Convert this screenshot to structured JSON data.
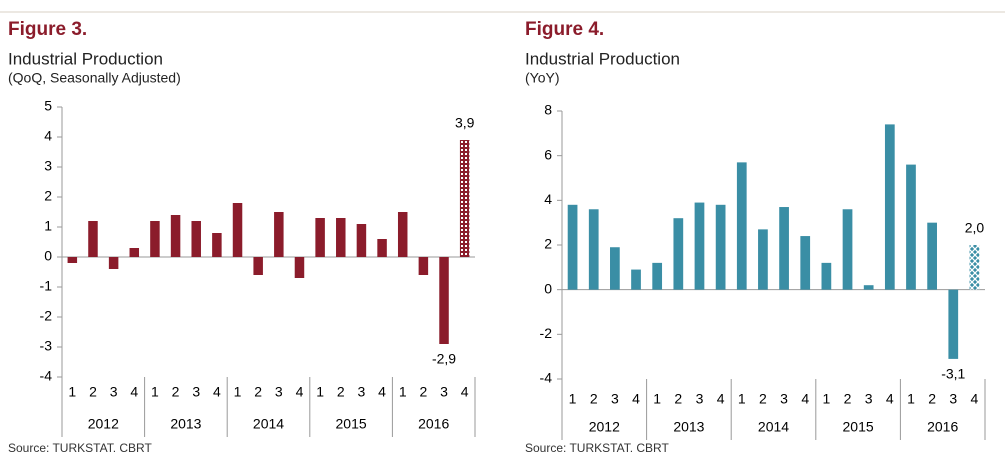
{
  "chart_data": [
    {
      "type": "bar",
      "title": "Figure 3.",
      "subtitle": "Industrial Production",
      "note": "(QoQ, Seasonally Adjusted)",
      "categories": [
        "1",
        "2",
        "3",
        "4",
        "1",
        "2",
        "3",
        "4",
        "1",
        "2",
        "3",
        "4",
        "1",
        "2",
        "3",
        "4",
        "1",
        "2",
        "3",
        "4"
      ],
      "groups": [
        "2012",
        "2013",
        "2014",
        "2015",
        "2016"
      ],
      "values": [
        -0.2,
        1.2,
        -0.4,
        0.3,
        1.2,
        1.4,
        1.2,
        0.8,
        1.8,
        -0.6,
        1.5,
        -0.7,
        1.3,
        1.3,
        1.1,
        0.6,
        1.5,
        -0.6,
        -2.9,
        3.9
      ],
      "value_labels": [
        null,
        null,
        null,
        null,
        null,
        null,
        null,
        null,
        null,
        null,
        null,
        null,
        null,
        null,
        null,
        null,
        null,
        null,
        "-2,9",
        "3,9"
      ],
      "color": "#8b1c2b",
      "patterned_last": true,
      "ylim": [
        -4,
        5
      ],
      "yticks": [
        -4,
        -3,
        -2,
        -1,
        0,
        1,
        2,
        3,
        4,
        5
      ],
      "source": "Source: TURKSTAT, CBRT"
    },
    {
      "type": "bar",
      "title": "Figure 4.",
      "subtitle": "Industrial Production",
      "note": "(YoY)",
      "categories": [
        "1",
        "2",
        "3",
        "4",
        "1",
        "2",
        "3",
        "4",
        "1",
        "2",
        "3",
        "4",
        "1",
        "2",
        "3",
        "4",
        "1",
        "2",
        "3",
        "4"
      ],
      "groups": [
        "2012",
        "2013",
        "2014",
        "2015",
        "2016"
      ],
      "values": [
        3.8,
        3.6,
        1.9,
        0.9,
        1.2,
        3.2,
        3.9,
        3.8,
        5.7,
        2.7,
        3.7,
        2.4,
        1.2,
        3.6,
        0.2,
        7.4,
        5.6,
        3.0,
        -3.1,
        2.0
      ],
      "value_labels": [
        null,
        null,
        null,
        null,
        null,
        null,
        null,
        null,
        null,
        null,
        null,
        null,
        null,
        null,
        null,
        null,
        null,
        null,
        "-3,1",
        "2,0"
      ],
      "color": "#3a8ea5",
      "patterned_last": true,
      "ylim": [
        -4,
        8
      ],
      "yticks": [
        -4,
        -2,
        0,
        2,
        4,
        6,
        8
      ],
      "source": "Source: TURKSTAT, CBRT"
    }
  ]
}
